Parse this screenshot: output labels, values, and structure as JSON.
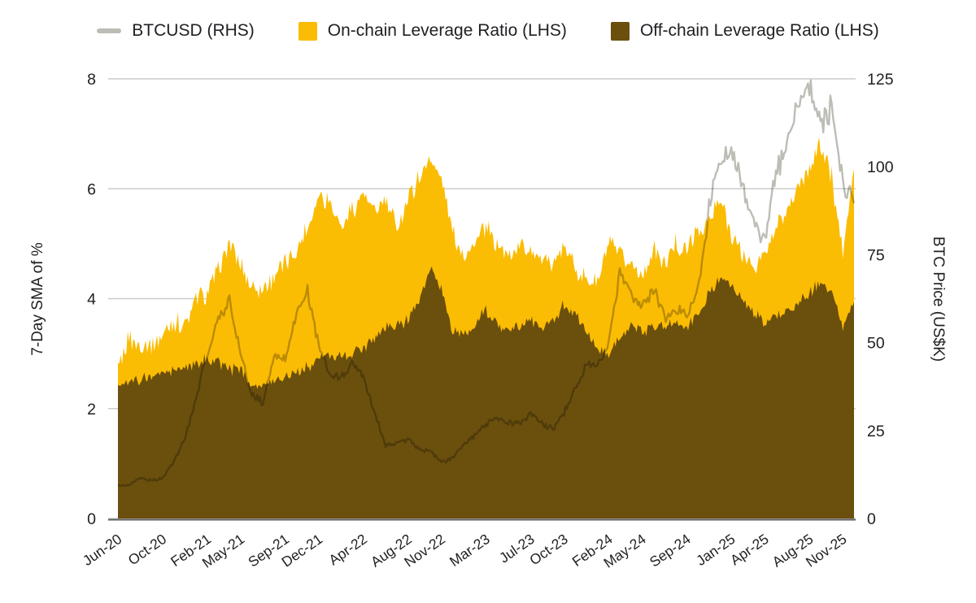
{
  "legend": {
    "items": [
      {
        "label": "BTCUSD (RHS)",
        "swatch": "line",
        "color": "#bdbdb6"
      },
      {
        "label": "On-chain Leverage Ratio (LHS)",
        "swatch": "square",
        "color": "#fbbc04"
      },
      {
        "label": "Off-chain Leverage Ratio (LHS)",
        "swatch": "square",
        "color": "#6b4f0d"
      }
    ]
  },
  "left_axis": {
    "title": "7-Day SMA of %",
    "ticks": [
      0,
      2,
      4,
      6,
      8
    ],
    "range": [
      0,
      8
    ]
  },
  "right_axis": {
    "title": "BTC Price (US$K)",
    "ticks": [
      0,
      25,
      50,
      75,
      100,
      125
    ],
    "range": [
      0,
      125
    ]
  },
  "x_axis": {
    "tick_labels": [
      "Jun-20",
      "Oct-20",
      "Feb-21",
      "May-21",
      "Sep-21",
      "Dec-21",
      "Apr-22",
      "Aug-22",
      "Nov-22",
      "Mar-23",
      "Jul-23",
      "Oct-23",
      "Feb-24",
      "May-24",
      "Sep-24",
      "Jan-25",
      "Apr-25",
      "Aug-25",
      "Nov-25"
    ],
    "tick_month_index": [
      0,
      4,
      8,
      11,
      15,
      18,
      22,
      26,
      29,
      33,
      37,
      40,
      44,
      47,
      51,
      55,
      58,
      62,
      65
    ]
  },
  "style": {
    "gridline_color": "#cccccc",
    "axis_line_color": "#5f5f5f",
    "text_color": "#202124",
    "background": "#ffffff"
  },
  "chart_data": {
    "type": "area",
    "title": "",
    "xlabel": "",
    "ylabel_left": "7-Day SMA of %",
    "ylabel_right": "BTC Price (US$K)",
    "ylim_left": [
      0,
      8
    ],
    "ylim_right": [
      0,
      125
    ],
    "grid": "horizontal",
    "legend_position": "top",
    "categories": [
      "Jun-20",
      "Jul-20",
      "Aug-20",
      "Sep-20",
      "Oct-20",
      "Nov-20",
      "Dec-20",
      "Jan-21",
      "Feb-21",
      "Mar-21",
      "Apr-21",
      "May-21",
      "Jun-21",
      "Jul-21",
      "Aug-21",
      "Sep-21",
      "Oct-21",
      "Nov-21",
      "Dec-21",
      "Jan-22",
      "Feb-22",
      "Mar-22",
      "Apr-22",
      "May-22",
      "Jun-22",
      "Jul-22",
      "Aug-22",
      "Sep-22",
      "Oct-22",
      "Nov-22",
      "Dec-22",
      "Jan-23",
      "Feb-23",
      "Mar-23",
      "Apr-23",
      "May-23",
      "Jun-23",
      "Jul-23",
      "Aug-23",
      "Sep-23",
      "Oct-23",
      "Nov-23",
      "Dec-23",
      "Jan-24",
      "Feb-24",
      "Mar-24",
      "Apr-24",
      "May-24",
      "Jun-24",
      "Jul-24",
      "Aug-24",
      "Sep-24",
      "Oct-24",
      "Nov-24",
      "Dec-24",
      "Jan-25",
      "Feb-25",
      "Mar-25",
      "Apr-25",
      "May-25",
      "Jun-25",
      "Jul-25",
      "Aug-25",
      "Sep-25",
      "Oct-25",
      "Nov-25",
      "Dec-25"
    ],
    "series": [
      {
        "name": "On-chain Leverage Ratio (LHS)",
        "axis": "left",
        "style": "area",
        "color": "#fbbc04",
        "values": [
          2.8,
          3.3,
          3.1,
          3.2,
          3.3,
          3.6,
          3.5,
          4.0,
          4.1,
          4.5,
          5.0,
          4.6,
          4.2,
          4.2,
          4.4,
          4.6,
          4.9,
          5.3,
          5.9,
          5.8,
          5.3,
          5.6,
          5.9,
          5.6,
          5.8,
          5.3,
          5.8,
          6.2,
          6.6,
          6.2,
          5.2,
          4.8,
          5.0,
          5.3,
          5.0,
          4.8,
          5.0,
          4.9,
          4.7,
          4.7,
          4.9,
          4.6,
          4.3,
          4.3,
          5.0,
          4.8,
          4.6,
          4.4,
          4.9,
          4.6,
          5.0,
          4.9,
          5.2,
          5.4,
          5.8,
          5.2,
          4.8,
          4.6,
          4.8,
          5.3,
          5.6,
          6.0,
          6.4,
          6.8,
          6.2,
          4.8,
          6.4
        ]
      },
      {
        "name": "Off-chain Leverage Ratio (LHS)",
        "axis": "left",
        "style": "area",
        "color": "#6b4f0d",
        "values": [
          2.4,
          2.55,
          2.5,
          2.6,
          2.65,
          2.7,
          2.75,
          2.8,
          2.9,
          2.85,
          2.7,
          2.75,
          2.45,
          2.4,
          2.5,
          2.6,
          2.65,
          2.75,
          2.9,
          3.0,
          2.95,
          3.0,
          3.1,
          3.3,
          3.5,
          3.5,
          3.6,
          4.0,
          4.5,
          4.2,
          3.4,
          3.3,
          3.5,
          3.8,
          3.5,
          3.4,
          3.5,
          3.6,
          3.5,
          3.6,
          3.9,
          3.7,
          3.4,
          3.1,
          3.0,
          3.3,
          3.5,
          3.4,
          3.5,
          3.5,
          3.6,
          3.5,
          3.7,
          4.1,
          4.4,
          4.2,
          4.0,
          3.7,
          3.6,
          3.7,
          3.8,
          3.9,
          4.1,
          4.3,
          4.1,
          3.5,
          3.95
        ]
      },
      {
        "name": "BTCUSD (RHS)",
        "axis": "right",
        "style": "line",
        "color": "#bdbdb6",
        "values": [
          9.4,
          9.6,
          11.5,
          10.8,
          11.5,
          16,
          23,
          34,
          47,
          57,
          62,
          47,
          35,
          33,
          46,
          45,
          58,
          65,
          49,
          41,
          40,
          44,
          41,
          30,
          21,
          21.5,
          22.5,
          19.5,
          19.5,
          16,
          17,
          21,
          23.5,
          27,
          29,
          27,
          27,
          30,
          27,
          25.5,
          30,
          37,
          43,
          43.5,
          50,
          70,
          64,
          60,
          65,
          57,
          59,
          58,
          65,
          88,
          102,
          106,
          94,
          84,
          79,
          98,
          106,
          118,
          122,
          112,
          117,
          96,
          90
        ]
      }
    ],
    "texture_note": "series rendered as 7-day noisy traces",
    "texture": {
      "substeps_per_month": 8,
      "jitter_on_chain": 0.3,
      "jitter_off_chain": 0.17,
      "jitter_btc_pct": 0.05
    }
  }
}
